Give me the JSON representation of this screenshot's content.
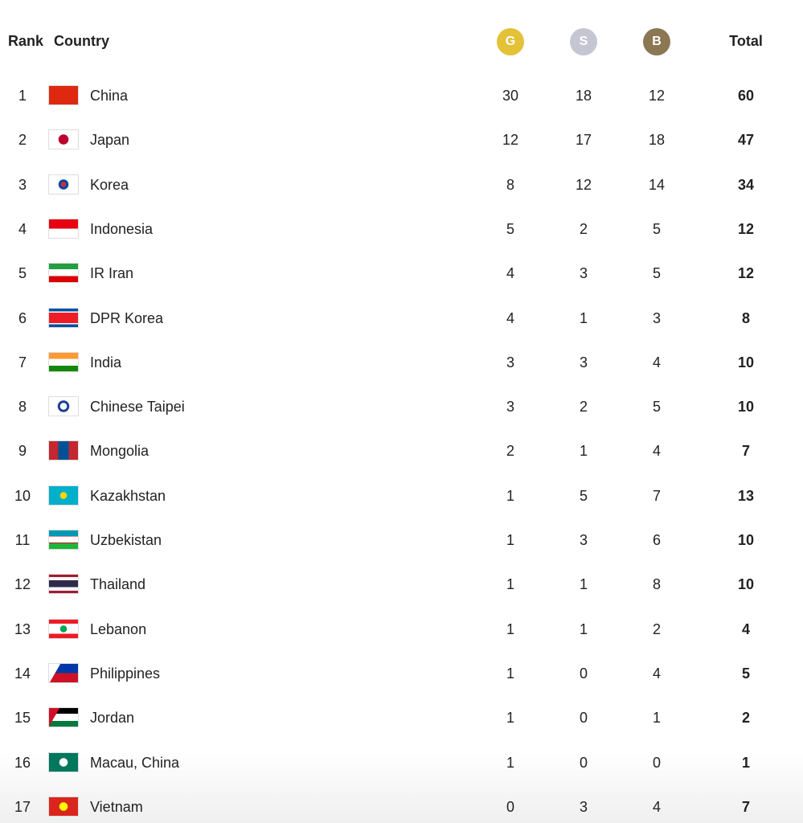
{
  "header": {
    "rank": "Rank",
    "country": "Country",
    "gold": "G",
    "silver": "S",
    "bronze": "B",
    "total": "Total"
  },
  "colors": {
    "gold": "#e3c238",
    "silver": "#c5c6d2",
    "bronze": "#8c7754"
  },
  "rows": [
    {
      "rank": "1",
      "country": "China",
      "flag": "china",
      "gold": "30",
      "silver": "18",
      "bronze": "12",
      "total": "60"
    },
    {
      "rank": "2",
      "country": "Japan",
      "flag": "japan",
      "gold": "12",
      "silver": "17",
      "bronze": "18",
      "total": "47"
    },
    {
      "rank": "3",
      "country": "Korea",
      "flag": "korea",
      "gold": "8",
      "silver": "12",
      "bronze": "14",
      "total": "34"
    },
    {
      "rank": "4",
      "country": "Indonesia",
      "flag": "indonesia",
      "gold": "5",
      "silver": "2",
      "bronze": "5",
      "total": "12"
    },
    {
      "rank": "5",
      "country": "IR Iran",
      "flag": "iran",
      "gold": "4",
      "silver": "3",
      "bronze": "5",
      "total": "12"
    },
    {
      "rank": "6",
      "country": "DPR Korea",
      "flag": "dpr-korea",
      "gold": "4",
      "silver": "1",
      "bronze": "3",
      "total": "8"
    },
    {
      "rank": "7",
      "country": "India",
      "flag": "india",
      "gold": "3",
      "silver": "3",
      "bronze": "4",
      "total": "10"
    },
    {
      "rank": "8",
      "country": "Chinese Taipei",
      "flag": "chinese-taipei",
      "gold": "3",
      "silver": "2",
      "bronze": "5",
      "total": "10"
    },
    {
      "rank": "9",
      "country": "Mongolia",
      "flag": "mongolia",
      "gold": "2",
      "silver": "1",
      "bronze": "4",
      "total": "7"
    },
    {
      "rank": "10",
      "country": "Kazakhstan",
      "flag": "kazakhstan",
      "gold": "1",
      "silver": "5",
      "bronze": "7",
      "total": "13"
    },
    {
      "rank": "11",
      "country": "Uzbekistan",
      "flag": "uzbekistan",
      "gold": "1",
      "silver": "3",
      "bronze": "6",
      "total": "10"
    },
    {
      "rank": "12",
      "country": "Thailand",
      "flag": "thailand",
      "gold": "1",
      "silver": "1",
      "bronze": "8",
      "total": "10"
    },
    {
      "rank": "13",
      "country": "Lebanon",
      "flag": "lebanon",
      "gold": "1",
      "silver": "1",
      "bronze": "2",
      "total": "4"
    },
    {
      "rank": "14",
      "country": "Philippines",
      "flag": "philippines",
      "gold": "1",
      "silver": "0",
      "bronze": "4",
      "total": "5"
    },
    {
      "rank": "15",
      "country": "Jordan",
      "flag": "jordan",
      "gold": "1",
      "silver": "0",
      "bronze": "1",
      "total": "2"
    },
    {
      "rank": "16",
      "country": "Macau, China",
      "flag": "macau",
      "gold": "1",
      "silver": "0",
      "bronze": "0",
      "total": "1"
    },
    {
      "rank": "17",
      "country": "Vietnam",
      "flag": "vietnam",
      "gold": "0",
      "silver": "3",
      "bronze": "4",
      "total": "7"
    }
  ]
}
